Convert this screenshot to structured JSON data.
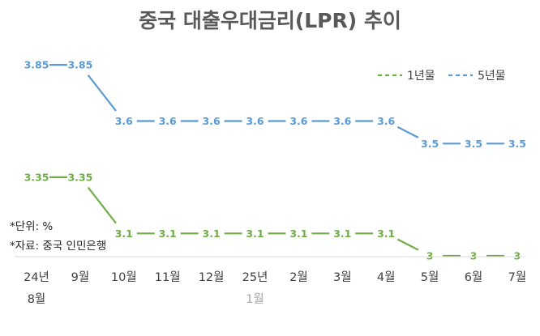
{
  "chart_data": {
    "type": "line",
    "title": "중국 대출우대금리(LPR) 추이",
    "categories": [
      "24년\n8월",
      "9월",
      "10월",
      "11월",
      "12월",
      "25년\n1월",
      "2월",
      "3월",
      "4월",
      "5월",
      "6월",
      "7월"
    ],
    "series": [
      {
        "name": "1년물",
        "color": "#70ad47",
        "values": [
          3.35,
          3.35,
          3.1,
          3.1,
          3.1,
          3.1,
          3.1,
          3.1,
          3.1,
          3,
          3,
          3
        ],
        "labels": [
          "3.35",
          "3.35",
          "3.1",
          "3.1",
          "3.1",
          "3.1",
          "3.1",
          "3.1",
          "3.1",
          "3",
          "3",
          "3"
        ]
      },
      {
        "name": "5년물",
        "color": "#5b9bd5",
        "values": [
          3.85,
          3.85,
          3.6,
          3.6,
          3.6,
          3.6,
          3.6,
          3.6,
          3.6,
          3.5,
          3.5,
          3.5
        ],
        "labels": [
          "3.85",
          "3.85",
          "3.6",
          "3.6",
          "3.6",
          "3.6",
          "3.6",
          "3.6",
          "3.6",
          "3.5",
          "3.5",
          "3.5"
        ]
      }
    ],
    "legend": "top-right",
    "xlabel": "",
    "ylabel": "",
    "grid": false,
    "notes": [
      "*단위: %",
      "*자료: 중국 인민은행"
    ]
  }
}
